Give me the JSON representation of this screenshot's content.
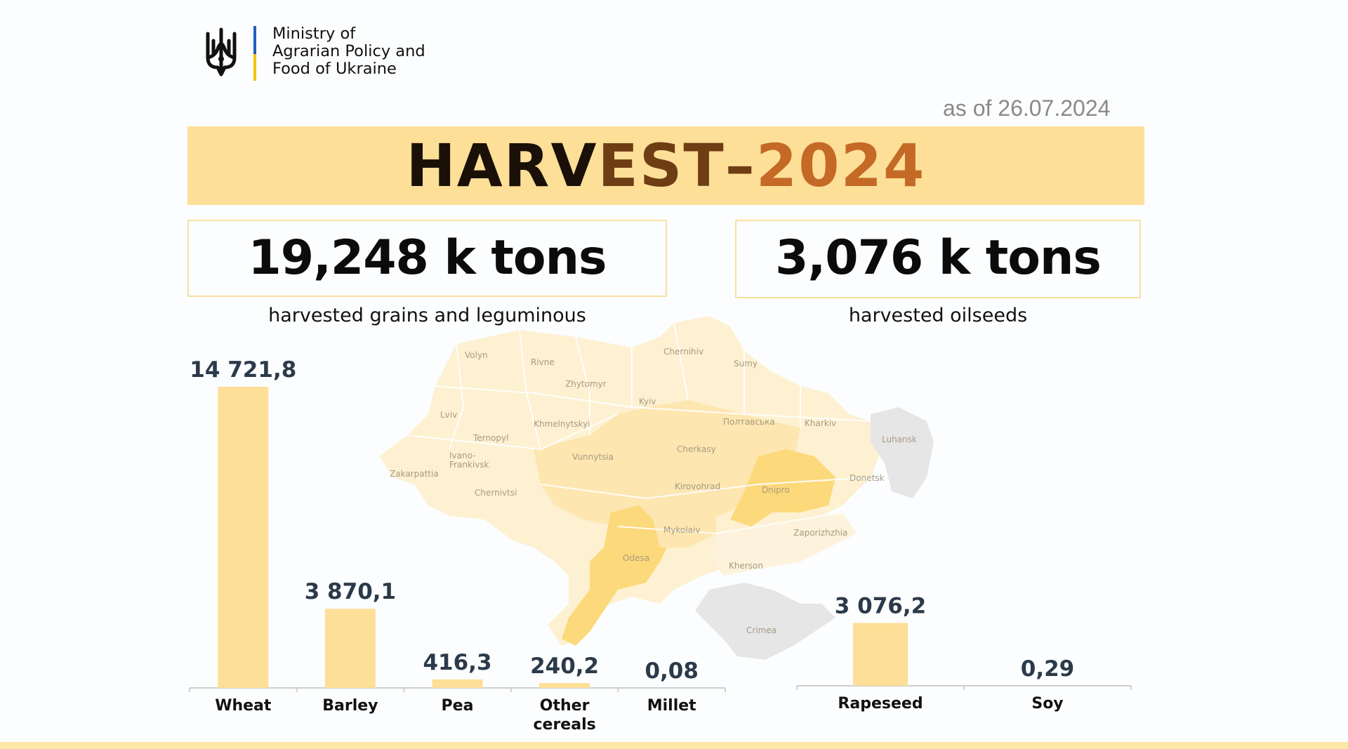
{
  "header": {
    "ministry_lines": [
      "Ministry of",
      "Agrarian Policy and",
      "Food of Ukraine"
    ],
    "logo_icon": "trident-icon",
    "as_of": "as of 26.07.2024"
  },
  "title": {
    "part1": "HARV",
    "part2": "EST–",
    "part3": "2024"
  },
  "totals": {
    "grains": {
      "value": "19,248 k tons",
      "caption": "harvested grains and  leguminous"
    },
    "oilseeds": {
      "value": "3,076 k tons",
      "caption": "harvested oilseeds"
    }
  },
  "colors": {
    "bar": "#fddf98",
    "banner": "#fddf98",
    "value_text": "#2b3a4a",
    "map_light": "#fdf1d2",
    "map_mid": "#fde6b0",
    "map_strong": "#fcd97a",
    "map_grey": "#e6e6e6"
  },
  "map": {
    "regions": [
      "Volyn",
      "Rivne",
      "Chernihiv",
      "Sumy",
      "Zhytomyr",
      "Kyiv",
      "Lviv",
      "Khmelnytskyi",
      "Полтавська",
      "Kharkiv",
      "Luhansk",
      "Ternopyl",
      "Cherkasy",
      "Ivano-\nFrankivsk",
      "Vunnytsia",
      "Zakarpattia",
      "Donetsk",
      "Chernivtsi",
      "Kirovohrad",
      "Dnipro",
      "Mykolaiv",
      "Zaporizhzhia",
      "Odesa",
      "Kherson",
      "Crimea"
    ]
  },
  "chart_data": [
    {
      "type": "bar",
      "categories": [
        "Wheat",
        "Barley",
        "Pea",
        "Other cereals",
        "Millet"
      ],
      "values": [
        14721.8,
        3870.1,
        416.3,
        240.2,
        0.08
      ],
      "value_labels": [
        "14 721,8",
        "3 870,1",
        "416,3",
        "240,2",
        "0,08"
      ],
      "ylim": [
        0,
        14721.8
      ],
      "grid": false,
      "title": "",
      "xlabel": "",
      "ylabel": ""
    },
    {
      "type": "bar",
      "categories": [
        "Rapeseed",
        "Soy"
      ],
      "values": [
        3076.2,
        0.29
      ],
      "value_labels": [
        "3 076,2",
        "0,29"
      ],
      "ylim": [
        0,
        14721.8
      ],
      "grid": false,
      "title": "",
      "xlabel": "",
      "ylabel": ""
    }
  ]
}
